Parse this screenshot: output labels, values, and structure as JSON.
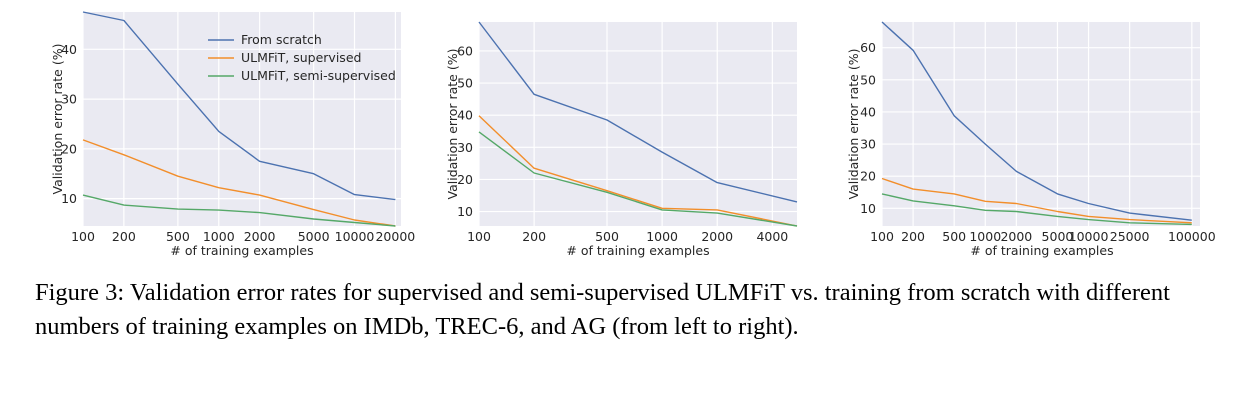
{
  "chart_data": [
    {
      "type": "line",
      "title": "IMDb",
      "xlabel": "# of training examples",
      "ylabel": "Validation error rate (%)",
      "xscale": "log",
      "xlim": [
        100,
        22000
      ],
      "ylim": [
        4.5,
        47.5
      ],
      "xticks": [
        100,
        200,
        500,
        1000,
        2000,
        5000,
        10000,
        20000
      ],
      "xtick_labels": [
        "100",
        "200",
        "500",
        "1000",
        "2000",
        "5000",
        "10000",
        "20000"
      ],
      "yticks": [
        10,
        20,
        30,
        40
      ],
      "ytick_labels": [
        "10",
        "20",
        "30",
        "40"
      ],
      "grid": true,
      "legend": "top-center",
      "x": [
        100,
        200,
        500,
        1000,
        2000,
        5000,
        10000,
        20000
      ],
      "series": [
        {
          "name": "From scratch",
          "color": "#4c72b0",
          "values": [
            47.5,
            45.8,
            33,
            23.5,
            17.5,
            15,
            10.8,
            9.8
          ]
        },
        {
          "name": "ULMFiT, supervised",
          "color": "#f28e2b",
          "values": [
            21.8,
            18.8,
            14.5,
            12.2,
            10.7,
            7.8,
            5.7,
            4.5
          ]
        },
        {
          "name": "ULMFiT, semi-supervised",
          "color": "#55a868",
          "values": [
            10.7,
            8.7,
            7.9,
            7.7,
            7.2,
            5.9,
            5.2,
            4.5
          ]
        }
      ]
    },
    {
      "type": "line",
      "title": "TREC-6",
      "xlabel": "# of training examples",
      "ylabel": "Validation error rate (%)",
      "xscale": "log",
      "xlim": [
        100,
        5452
      ],
      "ylim": [
        5.5,
        69
      ],
      "xticks": [
        100,
        200,
        500,
        1000,
        2000,
        4000
      ],
      "xtick_labels": [
        "100",
        "200",
        "500",
        "1000",
        "2000",
        "4000"
      ],
      "yticks": [
        10,
        20,
        30,
        40,
        50,
        60
      ],
      "ytick_labels": [
        "10",
        "20",
        "30",
        "40",
        "50",
        "60"
      ],
      "grid": true,
      "x": [
        100,
        200,
        500,
        1000,
        2000,
        5452
      ],
      "series": [
        {
          "name": "From scratch",
          "color": "#4c72b0",
          "values": [
            69,
            46.5,
            38.5,
            28.5,
            19,
            13
          ]
        },
        {
          "name": "ULMFiT, supervised",
          "color": "#f28e2b",
          "values": [
            39.8,
            23.5,
            16.5,
            11,
            10.5,
            5.5
          ]
        },
        {
          "name": "ULMFiT, semi-supervised",
          "color": "#55a868",
          "values": [
            34.8,
            22,
            16,
            10.5,
            9.5,
            5.5
          ]
        }
      ]
    },
    {
      "type": "line",
      "title": "AG",
      "xlabel": "# of training examples",
      "ylabel": "Validation error rate (%)",
      "xscale": "log",
      "xlim": [
        100,
        120000
      ],
      "ylim": [
        4.5,
        68
      ],
      "xticks": [
        100,
        200,
        500,
        1000,
        2000,
        5000,
        10000,
        25000,
        100000
      ],
      "xtick_labels": [
        "100",
        "200",
        "500",
        "1000",
        "2000",
        "5000",
        "10000",
        "25000",
        "100000"
      ],
      "yticks": [
        10,
        20,
        30,
        40,
        50,
        60
      ],
      "ytick_labels": [
        "10",
        "20",
        "30",
        "40",
        "50",
        "60"
      ],
      "grid": true,
      "x": [
        100,
        200,
        500,
        1000,
        2000,
        5000,
        10000,
        25000,
        100000
      ],
      "series": [
        {
          "name": "From scratch",
          "color": "#4c72b0",
          "values": [
            68,
            59.2,
            38.8,
            30,
            21.5,
            14.5,
            11.5,
            8.5,
            6.3
          ]
        },
        {
          "name": "ULMFiT, supervised",
          "color": "#f28e2b",
          "values": [
            19.3,
            16,
            14.5,
            12.2,
            11.5,
            9,
            7.5,
            6.5,
            5.5
          ]
        },
        {
          "name": "ULMFiT, semi-supervised",
          "color": "#55a868",
          "values": [
            14.5,
            12.3,
            10.8,
            9.4,
            9,
            7.5,
            6.5,
            5.5,
            5
          ]
        }
      ]
    }
  ],
  "caption": "Figure 3: Validation error rates for supervised and semi-supervised ULMFiT vs. training from scratch with different numbers of training examples on IMDb, TREC-6, and AG (from left to right)."
}
